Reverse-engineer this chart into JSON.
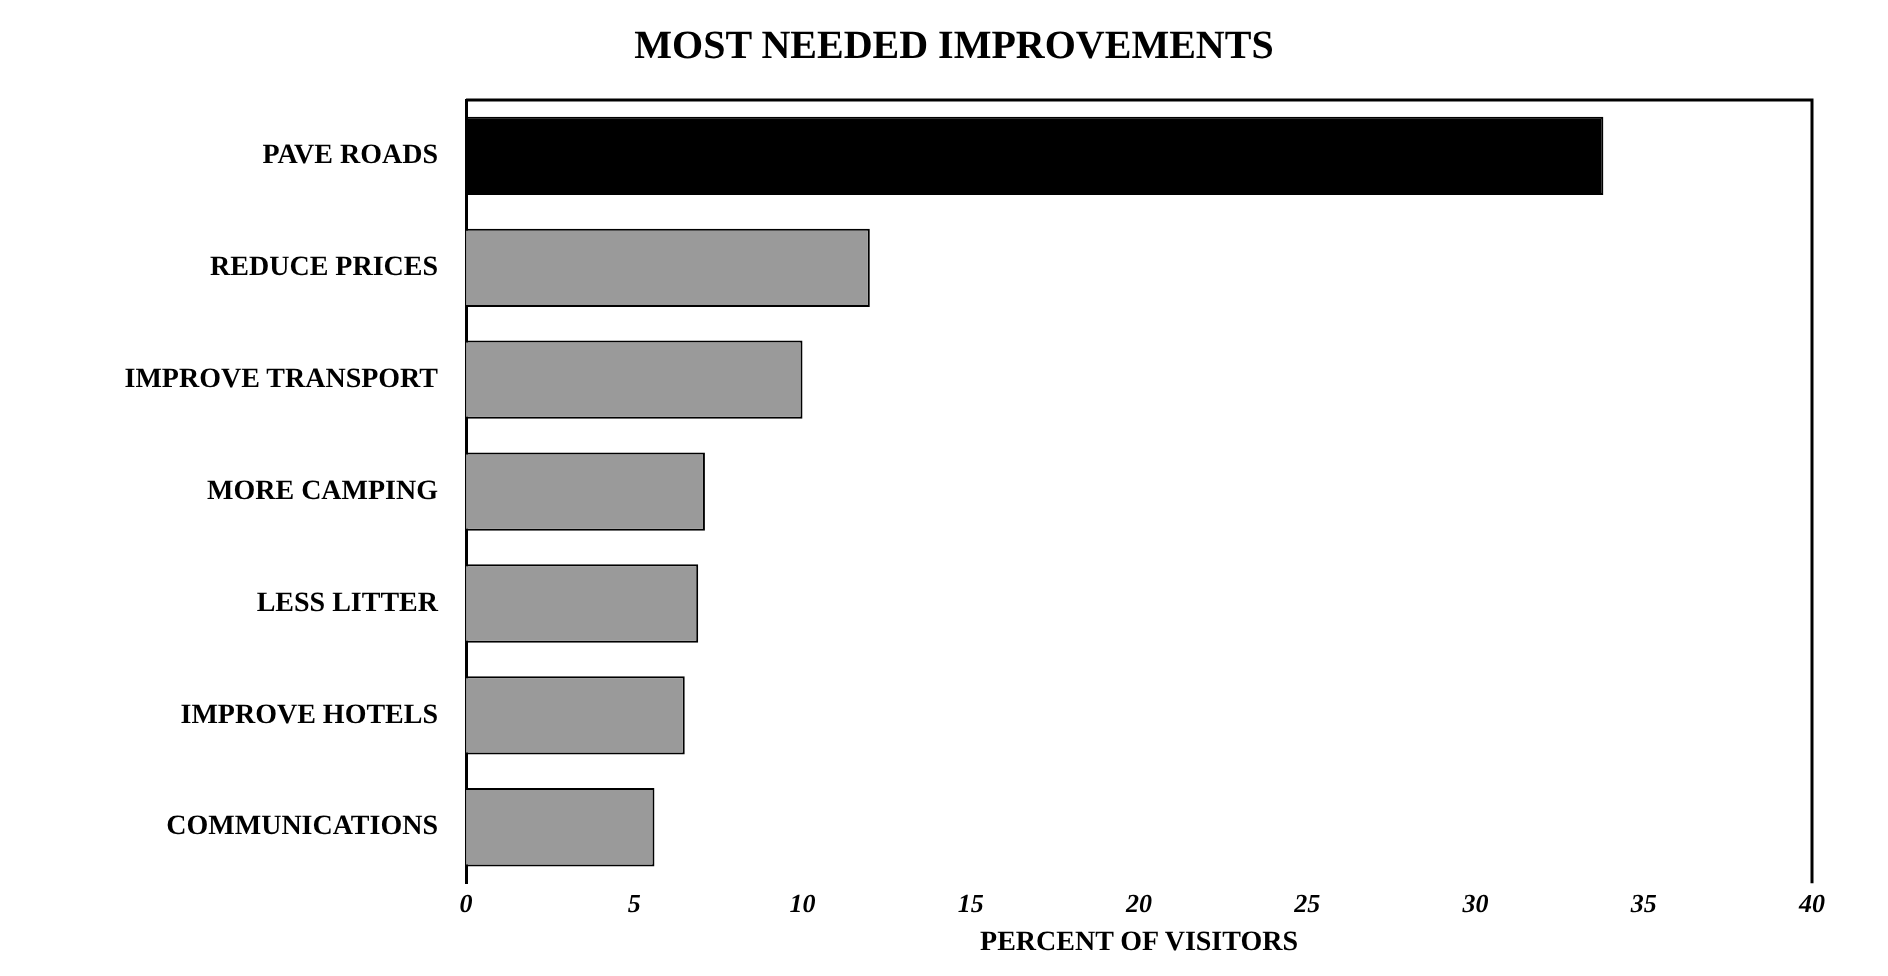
{
  "chart_data": {
    "type": "bar",
    "orientation": "horizontal",
    "title": "MOST NEEDED IMPROVEMENTS",
    "xlabel": "PERCENT OF VISITORS",
    "categories": [
      "PAVE ROADS",
      "REDUCE PRICES",
      "IMPROVE TRANSPORT",
      "MORE CAMPING",
      "LESS LITTER",
      "IMPROVE HOTELS",
      "COMMUNICATIONS"
    ],
    "values": [
      33.8,
      12,
      10,
      7.1,
      6.9,
      6.5,
      5.6
    ],
    "colors": [
      "#000000",
      "#9a9a9a",
      "#9a9a9a",
      "#9a9a9a",
      "#9a9a9a",
      "#9a9a9a",
      "#9a9a9a"
    ],
    "xlim": [
      0,
      40
    ],
    "xticks": [
      0,
      5,
      10,
      15,
      20,
      25,
      30,
      35,
      40
    ],
    "grid": false,
    "legend": false
  }
}
